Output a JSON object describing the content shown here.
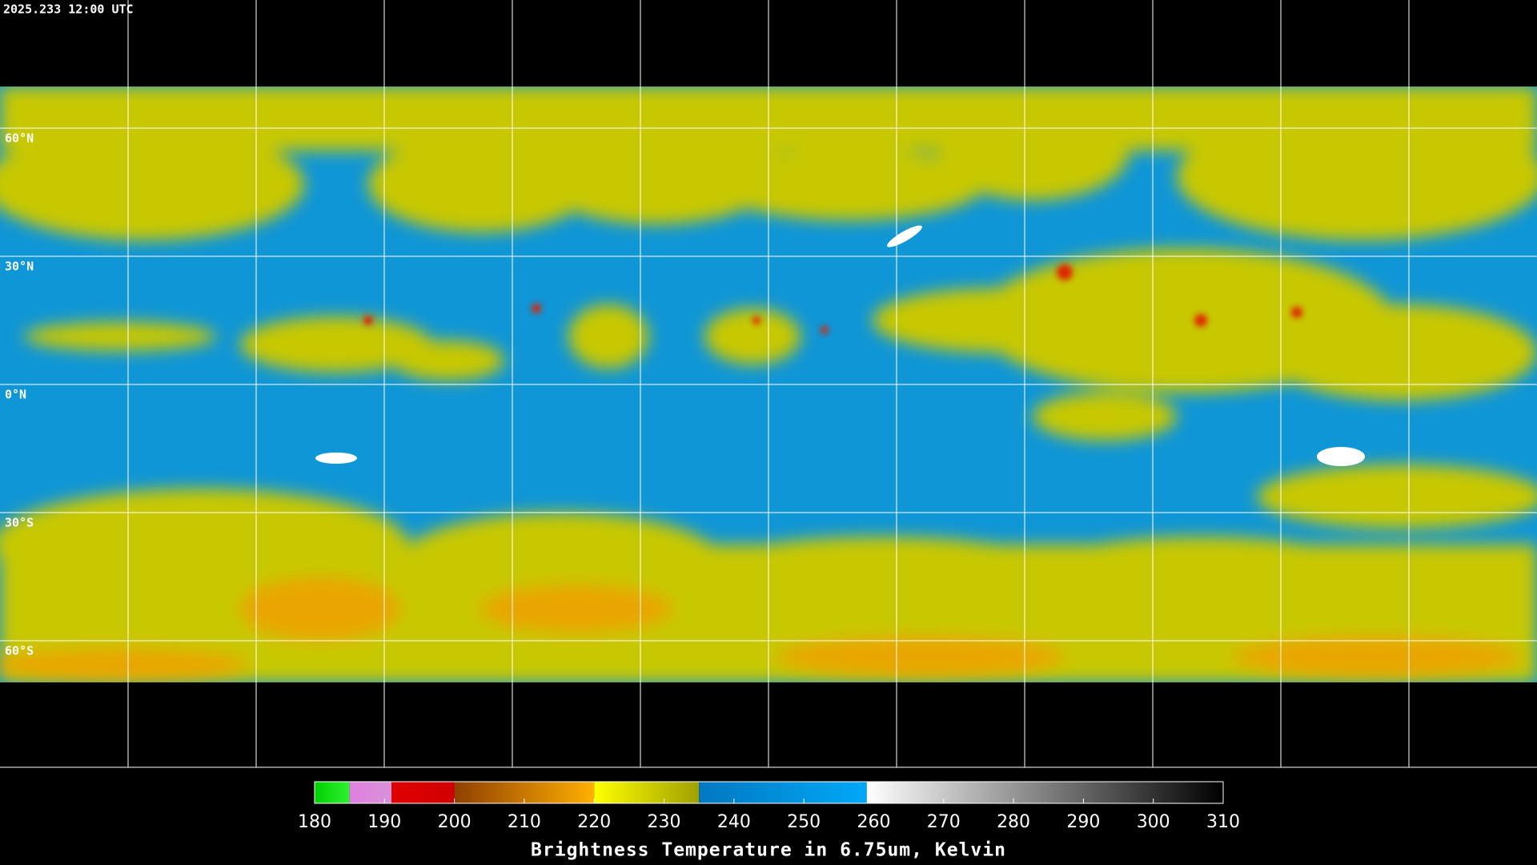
{
  "timestamp": "2025.233 12:00 UTC",
  "grid": {
    "lat_labels": [
      "60°N",
      "30°N",
      "0°N",
      "30°S",
      "60°S"
    ]
  },
  "colorbar": {
    "range": [
      180,
      310
    ],
    "ticks": [
      180,
      190,
      200,
      210,
      220,
      230,
      240,
      250,
      260,
      270,
      280,
      290,
      300,
      310
    ],
    "segments": [
      {
        "from": 180,
        "to": 185,
        "colors": [
          "#00d000",
          "#30f030"
        ]
      },
      {
        "from": 185,
        "to": 191,
        "colors": [
          "#e080e0",
          "#d890d8"
        ]
      },
      {
        "from": 191,
        "to": 200,
        "colors": [
          "#e00000",
          "#d00000"
        ]
      },
      {
        "from": 200,
        "to": 220,
        "colors": [
          "#904000",
          "#ffb000"
        ]
      },
      {
        "from": 220,
        "to": 235,
        "colors": [
          "#ffff00",
          "#a0a000"
        ]
      },
      {
        "from": 235,
        "to": 259,
        "colors": [
          "#0078c0",
          "#00a8f8"
        ]
      },
      {
        "from": 259,
        "to": 310,
        "colors": [
          "#ffffff",
          "#000000"
        ]
      }
    ],
    "label": "Brightness Temperature in 6.75um, Kelvin"
  }
}
